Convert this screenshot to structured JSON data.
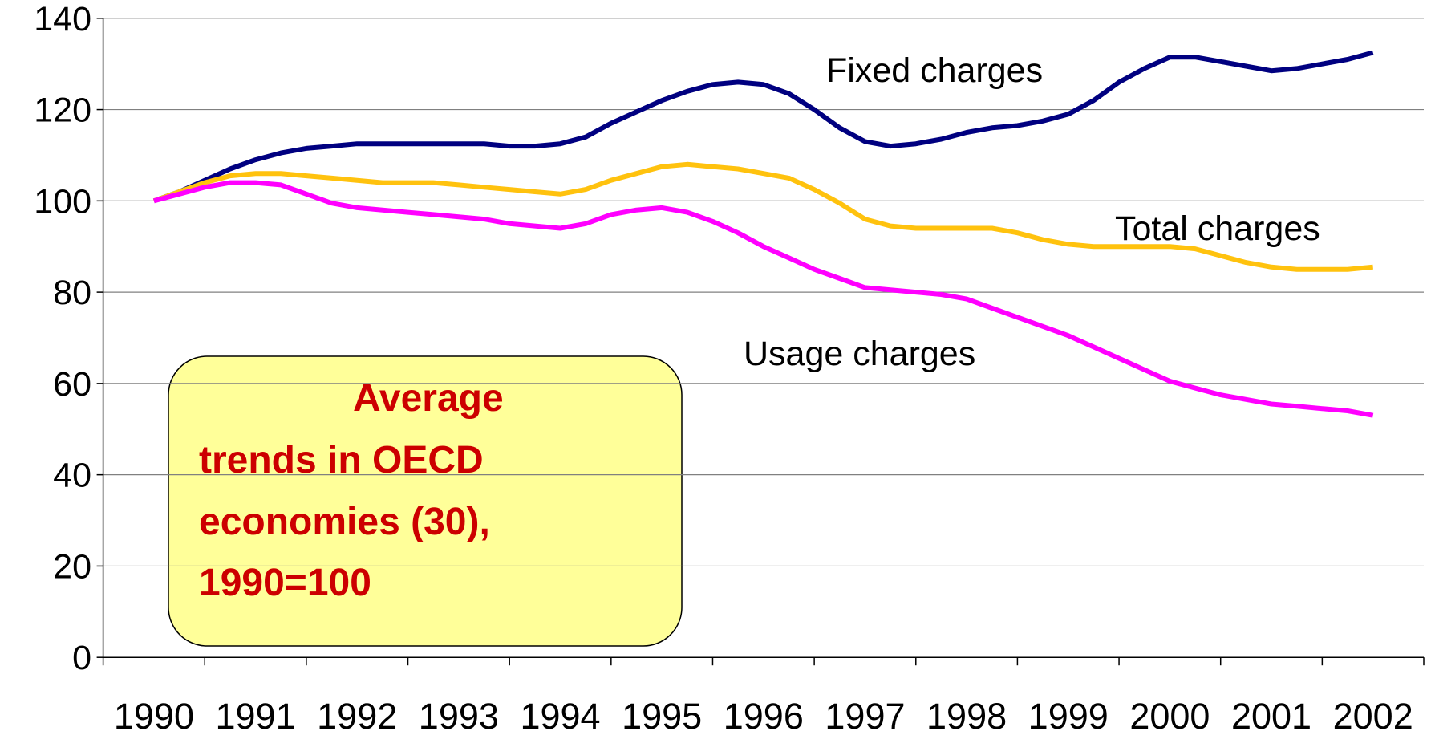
{
  "chart_data": {
    "type": "line",
    "categories": [
      "1990",
      null,
      null,
      null,
      "1991",
      null,
      null,
      null,
      "1992",
      null,
      null,
      null,
      "1993",
      null,
      null,
      null,
      "1994",
      null,
      null,
      null,
      "1995",
      null,
      null,
      null,
      "1996",
      null,
      null,
      null,
      "1997",
      null,
      null,
      null,
      "1998",
      null,
      null,
      null,
      "1999",
      null,
      null,
      null,
      "2000",
      null,
      null,
      null,
      "2001",
      null,
      null,
      null,
      "2002"
    ],
    "series": [
      {
        "name": "Fixed charges",
        "color": "#000080",
        "values": [
          100,
          102,
          104.5,
          107,
          109,
          110.5,
          111.5,
          112,
          112.5,
          112.5,
          112.5,
          112.5,
          112.5,
          112.5,
          112,
          112,
          112.5,
          114,
          117,
          119.5,
          122,
          124,
          125.5,
          126,
          125.5,
          123.5,
          120,
          116,
          113,
          112,
          112.5,
          113.5,
          115,
          116,
          116.5,
          117.5,
          119,
          122,
          126,
          129,
          131.5,
          131.5,
          130.5,
          129.5,
          128.5,
          129,
          130,
          131,
          132.5
        ]
      },
      {
        "name": "Total charges",
        "color": "#FFC20E",
        "values": [
          100,
          102,
          104,
          105.5,
          106,
          106,
          105.5,
          105,
          104.5,
          104,
          104,
          104,
          103.5,
          103,
          102.5,
          102,
          101.5,
          102.5,
          104.5,
          106,
          107.5,
          108,
          107.5,
          107,
          106,
          105,
          102.5,
          99.5,
          96,
          94.5,
          94,
          94,
          94,
          94,
          93,
          91.5,
          90.5,
          90,
          90,
          90,
          90,
          89.5,
          88,
          86.5,
          85.5,
          85,
          85,
          85,
          85.5
        ]
      },
      {
        "name": "Usage charges",
        "color": "#FF00FF",
        "values": [
          100,
          101.5,
          103,
          104,
          104,
          103.5,
          101.5,
          99.5,
          98.5,
          98,
          97.5,
          97,
          96.5,
          96,
          95,
          94.5,
          94,
          95,
          97,
          98,
          98.5,
          97.5,
          95.5,
          93,
          90,
          87.5,
          85,
          83,
          81,
          80.5,
          80,
          79.5,
          78.5,
          76.5,
          74.5,
          72.5,
          70.5,
          68,
          65.5,
          63,
          60.5,
          59,
          57.5,
          56.5,
          55.5,
          55,
          54.5,
          54,
          53
        ]
      }
    ],
    "ylim": [
      0,
      140
    ],
    "yticks": [
      0,
      20,
      40,
      60,
      80,
      100,
      120,
      140
    ],
    "grid": true,
    "annotation": [
      "Average",
      "trends in OECD",
      "economies (30),",
      "1990=100"
    ]
  }
}
